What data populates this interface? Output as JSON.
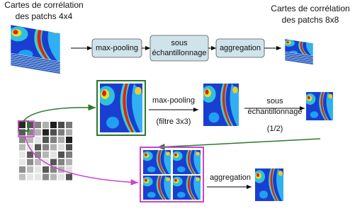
{
  "top": {
    "input_label": [
      "Cartes de corrélation",
      "des patchs 4x4"
    ],
    "steps": [
      "max-pooling",
      [
        "sous",
        "échantillonnage"
      ],
      "aggregation"
    ],
    "output_label": [
      "Cartes de corrélation",
      "des patchs 8x8"
    ]
  },
  "bottom": {
    "maxpool": {
      "label": "max-pooling",
      "note": "(filtre 3x3)"
    },
    "subsample": {
      "label": [
        "sous",
        "échantillonnage"
      ],
      "note": "(1/2)"
    },
    "aggregation": "aggregation"
  }
}
